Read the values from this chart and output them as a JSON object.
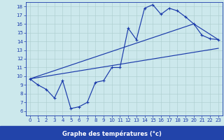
{
  "xlabel": "Graphe des températures (°c)",
  "xlim": [
    -0.5,
    23.5
  ],
  "ylim": [
    5.5,
    18.5
  ],
  "xticks": [
    0,
    1,
    2,
    3,
    4,
    5,
    6,
    7,
    8,
    9,
    10,
    11,
    12,
    13,
    14,
    15,
    16,
    17,
    18,
    19,
    20,
    21,
    22,
    23
  ],
  "yticks": [
    6,
    7,
    8,
    9,
    10,
    11,
    12,
    13,
    14,
    15,
    16,
    17,
    18
  ],
  "bg_color": "#cce8ec",
  "xlabel_bg": "#2244aa",
  "line_color": "#1a3aaa",
  "grid_color": "#aacccc",
  "tick_color": "#1a3aaa",
  "line1_x": [
    0,
    1,
    2,
    3,
    4,
    5,
    6,
    7,
    8,
    9,
    10,
    11,
    12,
    13,
    14,
    15,
    16,
    17,
    18,
    19,
    20,
    21,
    22,
    23
  ],
  "line1_y": [
    9.7,
    9.0,
    8.5,
    7.5,
    9.5,
    6.3,
    6.5,
    7.0,
    9.3,
    9.5,
    11.0,
    11.0,
    15.5,
    14.2,
    17.8,
    18.2,
    17.1,
    17.8,
    17.5,
    16.8,
    16.0,
    14.7,
    14.3,
    14.2
  ],
  "line2_x": [
    0,
    20,
    23
  ],
  "line2_y": [
    9.7,
    16.0,
    14.2
  ],
  "line3_x": [
    0,
    23
  ],
  "line3_y": [
    9.7,
    13.2
  ]
}
